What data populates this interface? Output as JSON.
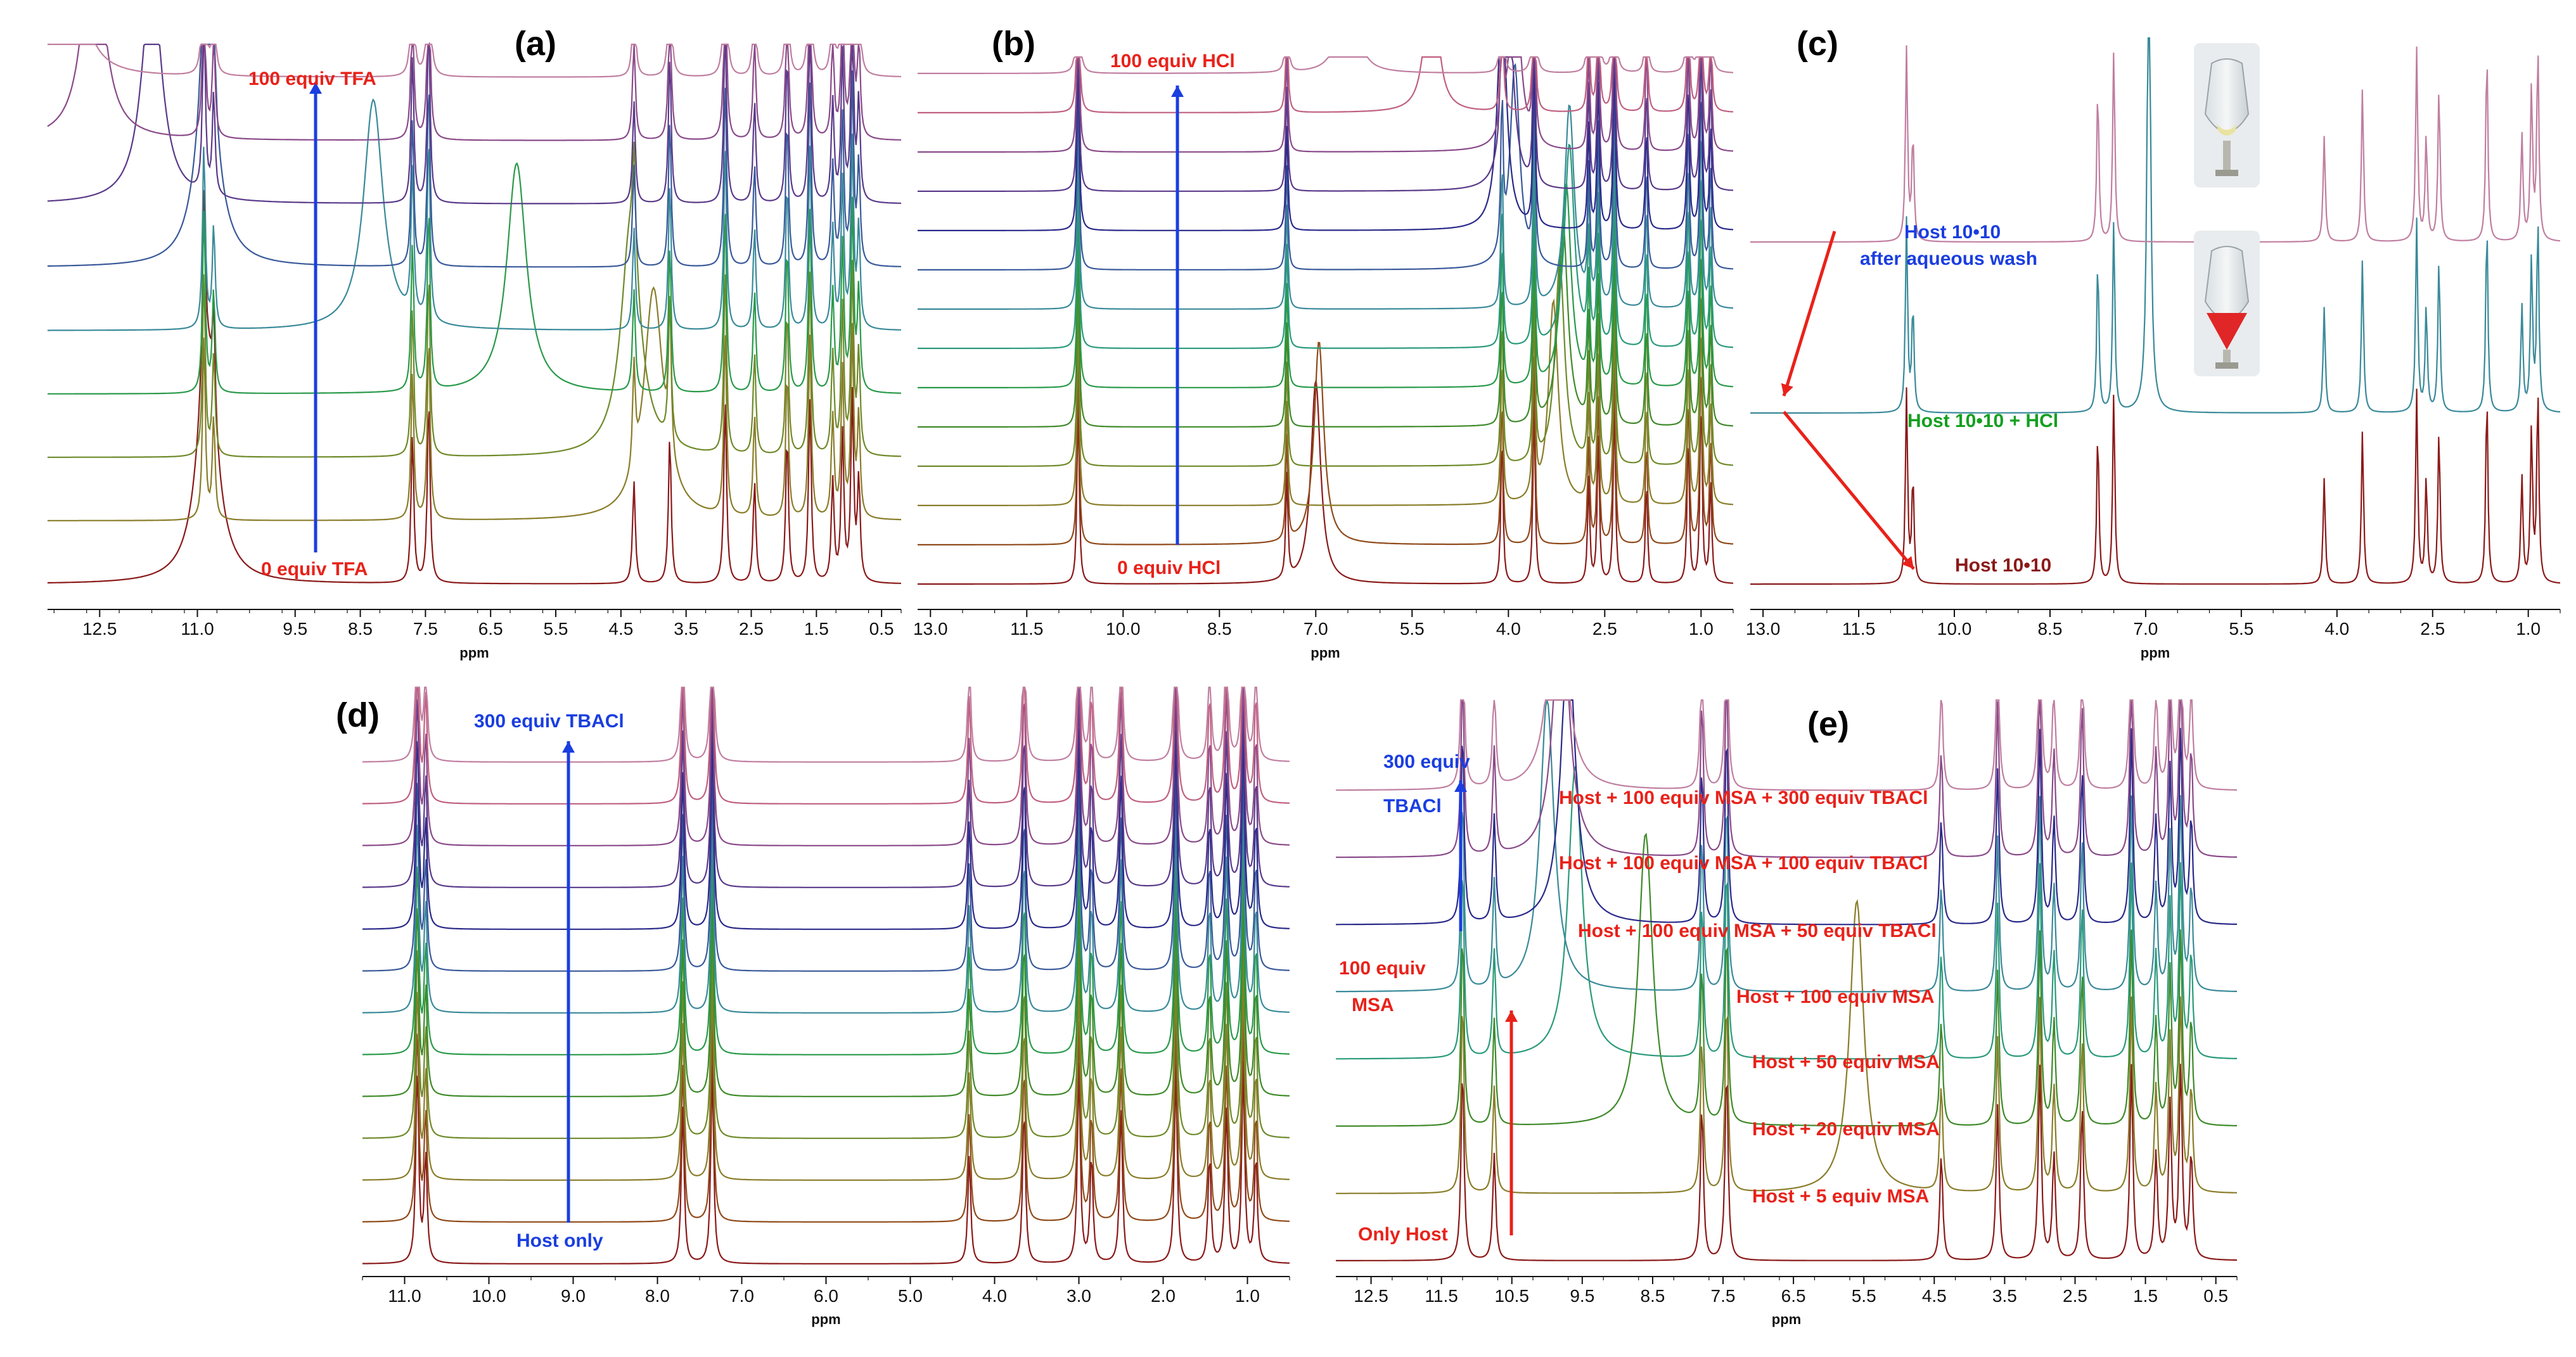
{
  "colors": {
    "trace_palette": [
      "#8b1a1a",
      "#8f4a1a",
      "#8a7d2a",
      "#6f8a2a",
      "#3f8a2a",
      "#2a9a4a",
      "#2a9a7a",
      "#3a8a9a",
      "#3a5a9a",
      "#2a2a8a",
      "#5a3a8a",
      "#8a4a8a",
      "#c06080",
      "#c07fa0"
    ],
    "red_label": "#e8221a",
    "blue_label": "#1a3ee0",
    "green_label": "#14a020",
    "maroon_label": "#8b1a1a",
    "axis": "#111111"
  },
  "chart_data": [
    {
      "id": "a",
      "type": "line",
      "panel_label": "(a)",
      "xlabel": "ppm",
      "xlim": [
        13.3,
        0.2
      ],
      "x_ticks": [
        "12.5",
        "11.0",
        "9.5",
        "8.5",
        "7.5",
        "6.5",
        "5.5",
        "4.5",
        "3.5",
        "2.5",
        "1.5",
        "0.5"
      ],
      "spectra_count": 9,
      "series": [
        {
          "name": "0 equiv TFA",
          "mobile_peak_ppm": 10.85
        },
        {
          "name": "",
          "mobile_peak_ppm": 4.0
        },
        {
          "name": "",
          "mobile_peak_ppm": 4.35
        },
        {
          "name": "",
          "mobile_peak_ppm": 6.1
        },
        {
          "name": "",
          "mobile_peak_ppm": 8.3
        },
        {
          "name": "",
          "mobile_peak_ppm": 10.85
        },
        {
          "name": "",
          "mobile_peak_ppm": 11.7
        },
        {
          "name": "",
          "mobile_peak_ppm": 12.6
        },
        {
          "name": "100 equiv TFA",
          "mobile_peak_ppm": 13.0
        }
      ],
      "fixed_peaks_ppm": [
        10.9,
        10.75,
        7.7,
        7.45,
        4.3,
        3.75,
        2.9,
        2.45,
        1.95,
        1.6,
        1.25,
        1.1,
        0.95,
        0.85
      ],
      "annotations": {
        "top": "100 equiv TFA",
        "bottom": "0 equiv TFA"
      }
    },
    {
      "id": "b",
      "type": "line",
      "panel_label": "(b)",
      "xlabel": "ppm",
      "xlim": [
        13.2,
        0.5
      ],
      "x_ticks": [
        "13.0",
        "11.5",
        "10.0",
        "8.5",
        "7.0",
        "5.5",
        "4.0",
        "2.5",
        "1.0"
      ],
      "spectra_count": 14,
      "series": [
        {
          "name": "0 equiv HCl",
          "mobile_peak_ppm": 7.0
        },
        {
          "name": "",
          "mobile_peak_ppm": 6.95
        },
        {
          "name": "",
          "mobile_peak_ppm": 3.3
        },
        {
          "name": "",
          "mobile_peak_ppm": 3.2
        },
        {
          "name": "",
          "mobile_peak_ppm": 3.15
        },
        {
          "name": "",
          "mobile_peak_ppm": 3.1
        },
        {
          "name": "",
          "mobile_peak_ppm": 3.05
        },
        {
          "name": "",
          "mobile_peak_ppm": 3.05
        },
        {
          "name": "",
          "mobile_peak_ppm": 3.9
        },
        {
          "name": "",
          "mobile_peak_ppm": 4.1
        },
        {
          "name": "",
          "mobile_peak_ppm": 4.0
        },
        {
          "name": "",
          "mobile_peak_ppm": 3.9
        },
        {
          "name": "",
          "mobile_peak_ppm": 5.2
        },
        {
          "name": "100 equiv HCl",
          "mobile_peak_ppm": 6.5
        }
      ],
      "fixed_peaks_ppm": [
        10.7,
        7.45,
        4.1,
        3.6,
        2.75,
        2.6,
        2.35,
        1.85,
        1.2,
        1.0,
        0.85
      ],
      "annotations": {
        "top": "100 equiv HCl",
        "bottom": "0 equiv HCl"
      }
    },
    {
      "id": "c",
      "type": "line",
      "panel_label": "(c)",
      "xlabel": "ppm",
      "xlim": [
        13.2,
        0.5
      ],
      "x_ticks": [
        "13.0",
        "11.5",
        "10.0",
        "8.5",
        "7.0",
        "5.5",
        "4.0",
        "2.5",
        "1.0"
      ],
      "spectra_count": 3,
      "series": [
        {
          "name": "Host 10•10",
          "mobile_peak_ppm": null
        },
        {
          "name": "Host 10•10 + HCl",
          "mobile_peak_ppm": 6.95
        },
        {
          "name": "Host 10•10 after aqueous wash",
          "mobile_peak_ppm": null
        }
      ],
      "fixed_peaks_ppm": [
        10.75,
        10.65,
        7.75,
        7.5,
        4.2,
        3.6,
        2.75,
        2.6,
        2.4,
        1.65,
        1.1,
        0.95,
        0.85
      ],
      "annotations": {
        "bottom": "Host 10•10",
        "middle": "Host 10•10 + HCl",
        "top_line1": "Host 10•10",
        "top_line2": "after aqueous wash"
      }
    },
    {
      "id": "d",
      "type": "line",
      "panel_label": "(d)",
      "xlabel": "ppm",
      "xlim": [
        11.5,
        0.5
      ],
      "x_ticks": [
        "11.0",
        "10.0",
        "9.0",
        "8.0",
        "7.0",
        "6.0",
        "5.0",
        "4.0",
        "3.0",
        "2.0",
        "1.0"
      ],
      "spectra_count": 13,
      "series": [
        {
          "name": "Host only"
        },
        {
          "name": ""
        },
        {
          "name": ""
        },
        {
          "name": ""
        },
        {
          "name": ""
        },
        {
          "name": ""
        },
        {
          "name": ""
        },
        {
          "name": ""
        },
        {
          "name": ""
        },
        {
          "name": ""
        },
        {
          "name": ""
        },
        {
          "name": ""
        },
        {
          "name": "300 equiv TBACl"
        }
      ],
      "fixed_peaks_ppm": [
        10.85,
        10.75,
        7.7,
        7.35,
        4.3,
        3.65,
        3.0,
        2.85,
        2.5,
        1.85,
        1.45,
        1.25,
        1.05,
        0.9
      ],
      "annotations": {
        "top": "300 equiv TBACl",
        "bottom": "Host only"
      }
    },
    {
      "id": "e",
      "type": "line",
      "panel_label": "(e)",
      "xlabel": "ppm",
      "xlim": [
        13.0,
        0.2
      ],
      "x_ticks": [
        "12.5",
        "11.5",
        "10.5",
        "9.5",
        "8.5",
        "7.5",
        "6.5",
        "5.5",
        "4.5",
        "3.5",
        "2.5",
        "1.5",
        "0.5"
      ],
      "spectra_count": 8,
      "series": [
        {
          "name": "Only Host",
          "mobile_peak_ppm": null
        },
        {
          "name": "Host + 5 equiv MSA",
          "mobile_peak_ppm": 5.6
        },
        {
          "name": "Host + 20 equiv MSA",
          "mobile_peak_ppm": 8.6
        },
        {
          "name": "Host + 50 equiv MSA",
          "mobile_peak_ppm": 9.6
        },
        {
          "name": "Host + 100 equiv MSA",
          "mobile_peak_ppm": 10.0
        },
        {
          "name": "Host + 100 equiv MSA + 50 equiv TBACl",
          "mobile_peak_ppm": 9.7
        },
        {
          "name": "Host + 100 equiv MSA + 100 equiv TBACl",
          "mobile_peak_ppm": 9.8
        },
        {
          "name": "Host + 100 equiv MSA + 300 equiv TBACl",
          "mobile_peak_ppm": 9.85
        }
      ],
      "fixed_peaks_ppm": [
        11.2,
        10.75,
        7.8,
        7.45,
        4.4,
        3.6,
        3.0,
        2.8,
        2.4,
        1.7,
        1.35,
        1.15,
        1.0,
        0.85
      ],
      "annotations": {
        "blue_top_line1": "300 equiv",
        "blue_top_line2": "TBACl",
        "red_line1": "100 equiv",
        "red_line2": "MSA",
        "bottom": "Only Host",
        "row_labels": [
          "Host + 100 equiv MSA + 300 equiv TBACl",
          "Host + 100 equiv MSA + 100 equiv TBACl",
          "Host + 100 equiv MSA + 50 equiv TBACl",
          "Host + 100 equiv MSA",
          "Host + 50 equiv MSA",
          "Host + 20 equiv MSA",
          "Host + 5 equiv MSA"
        ]
      }
    }
  ]
}
